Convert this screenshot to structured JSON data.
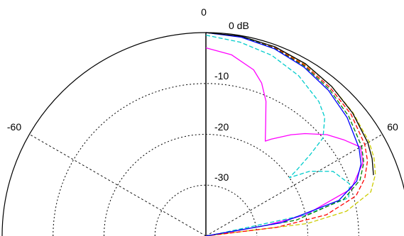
{
  "chart_data": {
    "type": "polar-line",
    "title": "",
    "angle_unit": "degrees",
    "angle_labels": [
      "0",
      "-60",
      "60"
    ],
    "radial_labels": [
      "0 dB",
      "-10",
      "-20",
      "-30"
    ],
    "r_range_db": [
      -40,
      0
    ],
    "radial_grid_db": [
      -10,
      -20,
      -30
    ],
    "angle_grid_deg": [
      -60,
      0,
      60
    ],
    "grid": true,
    "series": [
      {
        "color": "#ff00ff",
        "style": "solid",
        "points": [
          [
            0,
            -3
          ],
          [
            8,
            -4
          ],
          [
            16,
            -6
          ],
          [
            20,
            -8
          ],
          [
            24,
            -11
          ],
          [
            28,
            -15
          ],
          [
            32,
            -18
          ],
          [
            34,
            -17
          ],
          [
            40,
            -14
          ],
          [
            44,
            -12
          ],
          [
            50,
            -9
          ],
          [
            55,
            -7
          ],
          [
            60,
            -5
          ],
          [
            65,
            -6
          ],
          [
            72,
            -10
          ],
          [
            78,
            -20
          ],
          [
            80,
            -28
          ],
          [
            81,
            -38
          ],
          [
            82,
            -40
          ]
        ]
      },
      {
        "color": "#00cccc",
        "style": "dashed",
        "points": [
          [
            0,
            -0.5
          ],
          [
            10,
            -1.3
          ],
          [
            20,
            -2.2
          ],
          [
            30,
            -3.6
          ],
          [
            40,
            -5.5
          ],
          [
            45,
            -7
          ],
          [
            50,
            -10
          ],
          [
            52,
            -14
          ],
          [
            54,
            -18
          ],
          [
            55,
            -20
          ],
          [
            58,
            -16
          ],
          [
            63,
            -12
          ],
          [
            70,
            -10
          ],
          [
            75,
            -11
          ],
          [
            78,
            -20
          ],
          [
            80,
            -38
          ],
          [
            81,
            -40
          ]
        ]
      },
      {
        "color": "#cccc00",
        "style": "dashed",
        "points": [
          [
            0,
            0
          ],
          [
            10,
            -0.2
          ],
          [
            20,
            -0.5
          ],
          [
            30,
            -1
          ],
          [
            40,
            -1.6
          ],
          [
            50,
            -2.3
          ],
          [
            60,
            -3
          ],
          [
            65,
            -3.6
          ],
          [
            70,
            -4.6
          ],
          [
            75,
            -6.5
          ],
          [
            80,
            -12
          ],
          [
            83,
            -20
          ],
          [
            85,
            -40
          ]
        ]
      },
      {
        "color": "#ff0000",
        "style": "dashed",
        "points": [
          [
            0,
            0
          ],
          [
            10,
            -0.2
          ],
          [
            20,
            -0.6
          ],
          [
            30,
            -1.2
          ],
          [
            40,
            -2
          ],
          [
            50,
            -2.8
          ],
          [
            60,
            -4
          ],
          [
            65,
            -5
          ],
          [
            70,
            -6.8
          ],
          [
            75,
            -9.5
          ],
          [
            80,
            -16
          ],
          [
            83,
            -26
          ],
          [
            84,
            -40
          ]
        ]
      },
      {
        "color": "#008000",
        "style": "dashed",
        "points": [
          [
            0,
            0
          ],
          [
            10,
            -0.2
          ],
          [
            20,
            -0.7
          ],
          [
            30,
            -1.4
          ],
          [
            40,
            -2.3
          ],
          [
            50,
            -3.4
          ],
          [
            60,
            -4.7
          ],
          [
            65,
            -5.8
          ],
          [
            70,
            -7.8
          ],
          [
            75,
            -12
          ],
          [
            80,
            -22
          ],
          [
            82,
            -40
          ]
        ]
      },
      {
        "color": "#0000ff",
        "style": "solid",
        "points": [
          [
            0,
            0
          ],
          [
            10,
            -0.3
          ],
          [
            20,
            -0.8
          ],
          [
            30,
            -1.6
          ],
          [
            40,
            -2.6
          ],
          [
            50,
            -3.8
          ],
          [
            60,
            -5.3
          ],
          [
            65,
            -6.4
          ],
          [
            70,
            -8.5
          ],
          [
            75,
            -13
          ],
          [
            80,
            -25
          ],
          [
            81,
            -40
          ]
        ]
      },
      {
        "color": "#000000",
        "style": "solid",
        "points": [
          [
            0,
            0
          ],
          [
            10,
            -0.1
          ],
          [
            20,
            -0.4
          ],
          [
            30,
            -0.9
          ],
          [
            40,
            -1.6
          ],
          [
            50,
            -2.4
          ],
          [
            60,
            -3.3
          ],
          [
            65,
            -4
          ],
          [
            70,
            -5
          ]
        ]
      }
    ]
  }
}
